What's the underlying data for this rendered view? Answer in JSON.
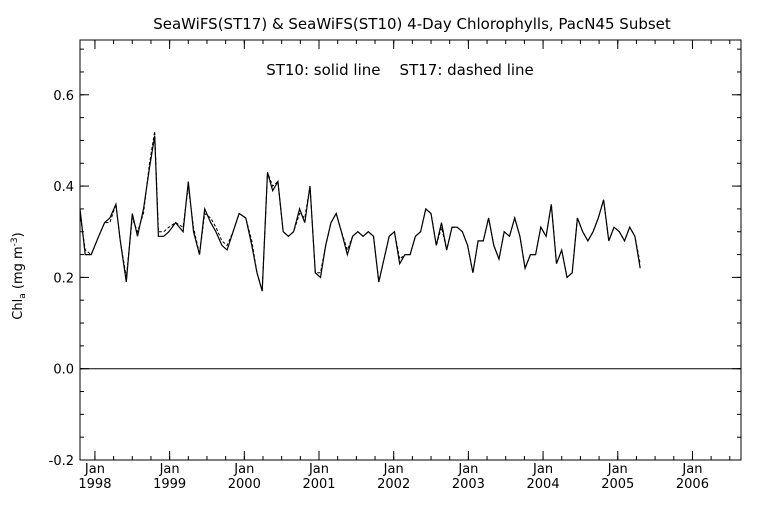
{
  "chart_data": {
    "type": "line",
    "title": "SeaWiFS(ST17) & SeaWiFS(ST10) 4-Day Chlorophylls, PacN45 Subset",
    "annotation": "ST10: solid line    ST17: dashed line",
    "ylabel": {
      "base": "Chl",
      "sub": "a",
      "units_open": " (mg m",
      "sup": "-3",
      "units_close": ")"
    },
    "ylim": [
      -0.2,
      0.72
    ],
    "yticks": [
      -0.2,
      0.0,
      0.2,
      0.4,
      0.6
    ],
    "ytick_labels": [
      "-0.2",
      "0.0",
      "0.2",
      "0.4",
      "0.6"
    ],
    "xlim": [
      1997.8,
      2006.65
    ],
    "xticks": [
      {
        "x": 1998,
        "month": "Jan",
        "year": "1998"
      },
      {
        "x": 1999,
        "month": "Jan",
        "year": "1999"
      },
      {
        "x": 2000,
        "month": "Jan",
        "year": "2000"
      },
      {
        "x": 2001,
        "month": "Jan",
        "year": "2001"
      },
      {
        "x": 2002,
        "month": "Jan",
        "year": "2002"
      },
      {
        "x": 2003,
        "month": "Jan",
        "year": "2003"
      },
      {
        "x": 2004,
        "month": "Jan",
        "year": "2004"
      },
      {
        "x": 2005,
        "month": "Jan",
        "year": "2005"
      },
      {
        "x": 2006,
        "month": "Jan",
        "year": "2006"
      }
    ],
    "zero_line": 0.0,
    "series": [
      {
        "name": "ST10",
        "style": "solid",
        "points": [
          [
            1997.8,
            0.35
          ],
          [
            1997.87,
            0.25
          ],
          [
            1997.95,
            0.25
          ],
          [
            1998.05,
            0.29
          ],
          [
            1998.13,
            0.32
          ],
          [
            1998.2,
            0.33
          ],
          [
            1998.28,
            0.36
          ],
          [
            1998.34,
            0.28
          ],
          [
            1998.42,
            0.19
          ],
          [
            1998.5,
            0.34
          ],
          [
            1998.57,
            0.29
          ],
          [
            1998.65,
            0.35
          ],
          [
            1998.73,
            0.44
          ],
          [
            1998.8,
            0.51
          ],
          [
            1998.85,
            0.29
          ],
          [
            1998.92,
            0.29
          ],
          [
            1998.99,
            0.3
          ],
          [
            1999.08,
            0.32
          ],
          [
            1999.18,
            0.3
          ],
          [
            1999.25,
            0.41
          ],
          [
            1999.32,
            0.3
          ],
          [
            1999.4,
            0.25
          ],
          [
            1999.47,
            0.35
          ],
          [
            1999.55,
            0.32
          ],
          [
            1999.62,
            0.3
          ],
          [
            1999.7,
            0.27
          ],
          [
            1999.77,
            0.26
          ],
          [
            1999.85,
            0.3
          ],
          [
            1999.93,
            0.34
          ],
          [
            2000.02,
            0.33
          ],
          [
            2000.1,
            0.27
          ],
          [
            2000.17,
            0.21
          ],
          [
            2000.24,
            0.17
          ],
          [
            2000.31,
            0.43
          ],
          [
            2000.38,
            0.39
          ],
          [
            2000.45,
            0.41
          ],
          [
            2000.52,
            0.3
          ],
          [
            2000.59,
            0.29
          ],
          [
            2000.66,
            0.3
          ],
          [
            2000.74,
            0.35
          ],
          [
            2000.81,
            0.32
          ],
          [
            2000.88,
            0.4
          ],
          [
            2000.95,
            0.21
          ],
          [
            2001.02,
            0.2
          ],
          [
            2001.09,
            0.27
          ],
          [
            2001.16,
            0.32
          ],
          [
            2001.23,
            0.34
          ],
          [
            2001.3,
            0.3
          ],
          [
            2001.38,
            0.25
          ],
          [
            2001.45,
            0.29
          ],
          [
            2001.52,
            0.3
          ],
          [
            2001.59,
            0.29
          ],
          [
            2001.66,
            0.3
          ],
          [
            2001.73,
            0.29
          ],
          [
            2001.8,
            0.19
          ],
          [
            2001.87,
            0.24
          ],
          [
            2001.94,
            0.29
          ],
          [
            2002.01,
            0.3
          ],
          [
            2002.08,
            0.23
          ],
          [
            2002.15,
            0.25
          ],
          [
            2002.22,
            0.25
          ],
          [
            2002.29,
            0.29
          ],
          [
            2002.36,
            0.3
          ],
          [
            2002.43,
            0.35
          ],
          [
            2002.5,
            0.34
          ],
          [
            2002.57,
            0.27
          ],
          [
            2002.64,
            0.32
          ],
          [
            2002.71,
            0.26
          ],
          [
            2002.78,
            0.31
          ],
          [
            2002.85,
            0.31
          ],
          [
            2002.92,
            0.3
          ],
          [
            2002.99,
            0.27
          ],
          [
            2003.06,
            0.21
          ],
          [
            2003.13,
            0.28
          ],
          [
            2003.2,
            0.28
          ],
          [
            2003.27,
            0.33
          ],
          [
            2003.34,
            0.27
          ],
          [
            2003.41,
            0.24
          ],
          [
            2003.48,
            0.3
          ],
          [
            2003.55,
            0.29
          ],
          [
            2003.62,
            0.33
          ],
          [
            2003.69,
            0.29
          ],
          [
            2003.76,
            0.22
          ],
          [
            2003.83,
            0.25
          ],
          [
            2003.9,
            0.25
          ],
          [
            2003.97,
            0.31
          ],
          [
            2004.04,
            0.29
          ],
          [
            2004.11,
            0.36
          ],
          [
            2004.18,
            0.23
          ],
          [
            2004.25,
            0.26
          ],
          [
            2004.32,
            0.2
          ],
          [
            2004.39,
            0.21
          ],
          [
            2004.46,
            0.33
          ],
          [
            2004.53,
            0.3
          ],
          [
            2004.6,
            0.28
          ],
          [
            2004.67,
            0.3
          ],
          [
            2004.74,
            0.33
          ],
          [
            2004.81,
            0.37
          ],
          [
            2004.88,
            0.28
          ],
          [
            2004.95,
            0.31
          ],
          [
            2005.02,
            0.3
          ],
          [
            2005.09,
            0.28
          ],
          [
            2005.16,
            0.31
          ],
          [
            2005.23,
            0.29
          ],
          [
            2005.3,
            0.22
          ]
        ]
      },
      {
        "name": "ST17",
        "style": "dashed",
        "points": [
          [
            1997.8,
            0.34
          ],
          [
            1997.87,
            0.26
          ],
          [
            1997.95,
            0.25
          ],
          [
            1998.05,
            0.29
          ],
          [
            1998.13,
            0.32
          ],
          [
            1998.2,
            0.32
          ],
          [
            1998.28,
            0.36
          ],
          [
            1998.34,
            0.28
          ],
          [
            1998.42,
            0.2
          ],
          [
            1998.5,
            0.33
          ],
          [
            1998.57,
            0.3
          ],
          [
            1998.65,
            0.34
          ],
          [
            1998.73,
            0.45
          ],
          [
            1998.8,
            0.52
          ],
          [
            1998.85,
            0.3
          ],
          [
            1998.92,
            0.3
          ],
          [
            1998.99,
            0.31
          ],
          [
            1999.08,
            0.32
          ],
          [
            1999.18,
            0.31
          ],
          [
            1999.25,
            0.4
          ],
          [
            1999.32,
            0.31
          ],
          [
            1999.4,
            0.25
          ],
          [
            1999.47,
            0.34
          ],
          [
            1999.55,
            0.33
          ],
          [
            1999.62,
            0.31
          ],
          [
            1999.7,
            0.28
          ],
          [
            1999.77,
            0.27
          ],
          [
            1999.85,
            0.3
          ],
          [
            1999.93,
            0.34
          ],
          [
            2000.02,
            0.33
          ],
          [
            2000.1,
            0.28
          ],
          [
            2000.17,
            0.21
          ],
          [
            2000.24,
            0.17
          ],
          [
            2000.31,
            0.43
          ],
          [
            2000.38,
            0.4
          ],
          [
            2000.45,
            0.41
          ],
          [
            2000.52,
            0.3
          ],
          [
            2000.59,
            0.29
          ],
          [
            2000.66,
            0.3
          ],
          [
            2000.74,
            0.34
          ],
          [
            2000.81,
            0.33
          ],
          [
            2000.88,
            0.4
          ],
          [
            2000.95,
            0.21
          ],
          [
            2001.02,
            0.21
          ],
          [
            2001.09,
            0.27
          ],
          [
            2001.16,
            0.32
          ],
          [
            2001.23,
            0.34
          ],
          [
            2001.3,
            0.3
          ],
          [
            2001.38,
            0.26
          ],
          [
            2001.45,
            0.29
          ],
          [
            2001.52,
            0.3
          ],
          [
            2001.59,
            0.29
          ],
          [
            2001.66,
            0.3
          ],
          [
            2001.73,
            0.29
          ],
          [
            2001.8,
            0.19
          ],
          [
            2001.87,
            0.24
          ],
          [
            2001.94,
            0.29
          ],
          [
            2002.01,
            0.3
          ],
          [
            2002.08,
            0.24
          ],
          [
            2002.15,
            0.25
          ],
          [
            2002.22,
            0.25
          ],
          [
            2002.29,
            0.29
          ],
          [
            2002.36,
            0.3
          ],
          [
            2002.43,
            0.35
          ],
          [
            2002.5,
            0.34
          ],
          [
            2002.57,
            0.27
          ],
          [
            2002.64,
            0.31
          ],
          [
            2002.71,
            0.26
          ],
          [
            2002.78,
            0.31
          ],
          [
            2002.85,
            0.31
          ],
          [
            2002.92,
            0.3
          ],
          [
            2002.99,
            0.27
          ],
          [
            2003.06,
            0.21
          ],
          [
            2003.13,
            0.28
          ],
          [
            2003.2,
            0.28
          ],
          [
            2003.27,
            0.33
          ],
          [
            2003.34,
            0.27
          ],
          [
            2003.41,
            0.24
          ],
          [
            2003.48,
            0.3
          ],
          [
            2003.55,
            0.29
          ],
          [
            2003.62,
            0.33
          ],
          [
            2003.69,
            0.29
          ],
          [
            2003.76,
            0.22
          ],
          [
            2003.83,
            0.25
          ],
          [
            2003.9,
            0.25
          ],
          [
            2003.97,
            0.31
          ],
          [
            2004.04,
            0.29
          ],
          [
            2004.11,
            0.36
          ],
          [
            2004.18,
            0.23
          ],
          [
            2004.25,
            0.26
          ],
          [
            2004.32,
            0.2
          ],
          [
            2004.39,
            0.21
          ],
          [
            2004.46,
            0.33
          ],
          [
            2004.53,
            0.3
          ],
          [
            2004.6,
            0.28
          ],
          [
            2004.67,
            0.3
          ],
          [
            2004.74,
            0.33
          ],
          [
            2004.81,
            0.37
          ],
          [
            2004.88,
            0.28
          ],
          [
            2004.95,
            0.31
          ],
          [
            2005.02,
            0.3
          ],
          [
            2005.09,
            0.28
          ],
          [
            2005.16,
            0.31
          ],
          [
            2005.23,
            0.29
          ],
          [
            2005.3,
            0.23
          ]
        ]
      }
    ]
  }
}
